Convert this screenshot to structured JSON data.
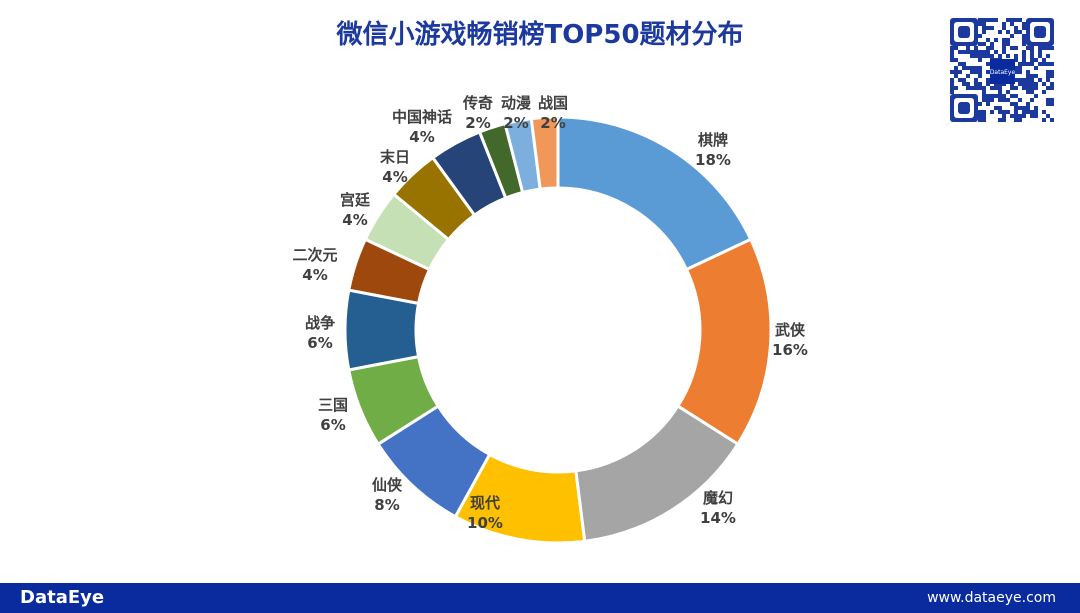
{
  "chart_data": {
    "type": "pie",
    "title": "微信小游戏畅销榜TOP50题材分布",
    "categories": [
      "棋牌",
      "武侠",
      "魔幻",
      "现代",
      "仙侠",
      "三国",
      "战争",
      "二次元",
      "宫廷",
      "末日",
      "中国神话",
      "传奇",
      "动漫",
      "战国"
    ],
    "values": [
      18,
      16,
      14,
      10,
      8,
      6,
      6,
      4,
      4,
      4,
      4,
      2,
      2,
      2
    ],
    "labels": [
      "18%",
      "16%",
      "14%",
      "10%",
      "8%",
      "6%",
      "6%",
      "4%",
      "4%",
      "4%",
      "4%",
      "2%",
      "2%",
      "2%"
    ],
    "colors": [
      "#5b9bd5",
      "#ed7d31",
      "#a5a5a5",
      "#ffc000",
      "#4472c4",
      "#70ad47",
      "#255e91",
      "#9e480e",
      "#c5e0b4",
      "#997300",
      "#264478",
      "#43682b",
      "#7cafdd",
      "#f1975a"
    ],
    "donut": true
  },
  "footer": {
    "logo": "DataEye",
    "url": "www.dataeye.com"
  },
  "qr": {
    "logo_text": "DataEye"
  }
}
